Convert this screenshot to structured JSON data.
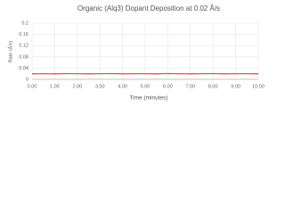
{
  "chart_data": {
    "type": "line",
    "title": "Organic (Alq3) Dopant Deposition at 0.02 Å/s",
    "x_label": "Time (minutes)",
    "y_label": "Rate (Å/s)",
    "x": [
      0,
      0.5,
      1,
      1.5,
      2,
      2.5,
      3,
      3.5,
      4,
      4.5,
      5,
      5.5,
      6,
      6.5,
      7,
      7.5,
      8,
      8.5,
      9,
      9.5,
      10
    ],
    "series": [
      {
        "color": "#8b1a1a",
        "values": [
          0.02,
          0.02,
          0.02,
          0.02,
          0.02,
          0.02,
          0.02,
          0.02,
          0.02,
          0.02,
          0.02,
          0.02,
          0.02,
          0.02,
          0.02,
          0.02,
          0.02,
          0.02,
          0.02,
          0.02,
          0.02
        ]
      },
      {
        "color": "#d9534f",
        "values": [
          0.019,
          0.02,
          0.019,
          0.021,
          0.02,
          0.019,
          0.02,
          0.021,
          0.019,
          0.02,
          0.02,
          0.019,
          0.021,
          0.02,
          0.019,
          0.02,
          0.021,
          0.019,
          0.02,
          0.02,
          0.019
        ]
      }
    ],
    "xlim": [
      0,
      10
    ],
    "xticks": [
      {
        "value": 0,
        "label": "0.00"
      },
      {
        "value": 1,
        "label": "1.00"
      },
      {
        "value": 2,
        "label": "2.00"
      },
      {
        "value": 3,
        "label": "3.00"
      },
      {
        "value": 4,
        "label": "4.00"
      },
      {
        "value": 5,
        "label": "5.00"
      },
      {
        "value": 6,
        "label": "6.00"
      },
      {
        "value": 7,
        "label": "7.00"
      },
      {
        "value": 8,
        "label": "8.00"
      },
      {
        "value": 9,
        "label": "9.00"
      },
      {
        "value": 10,
        "label": "10.00"
      }
    ],
    "ylim": [
      0,
      0.2
    ],
    "yticks": [
      0,
      0.04,
      0.08,
      0.12,
      0.16,
      0.2
    ],
    "grid": true
  }
}
